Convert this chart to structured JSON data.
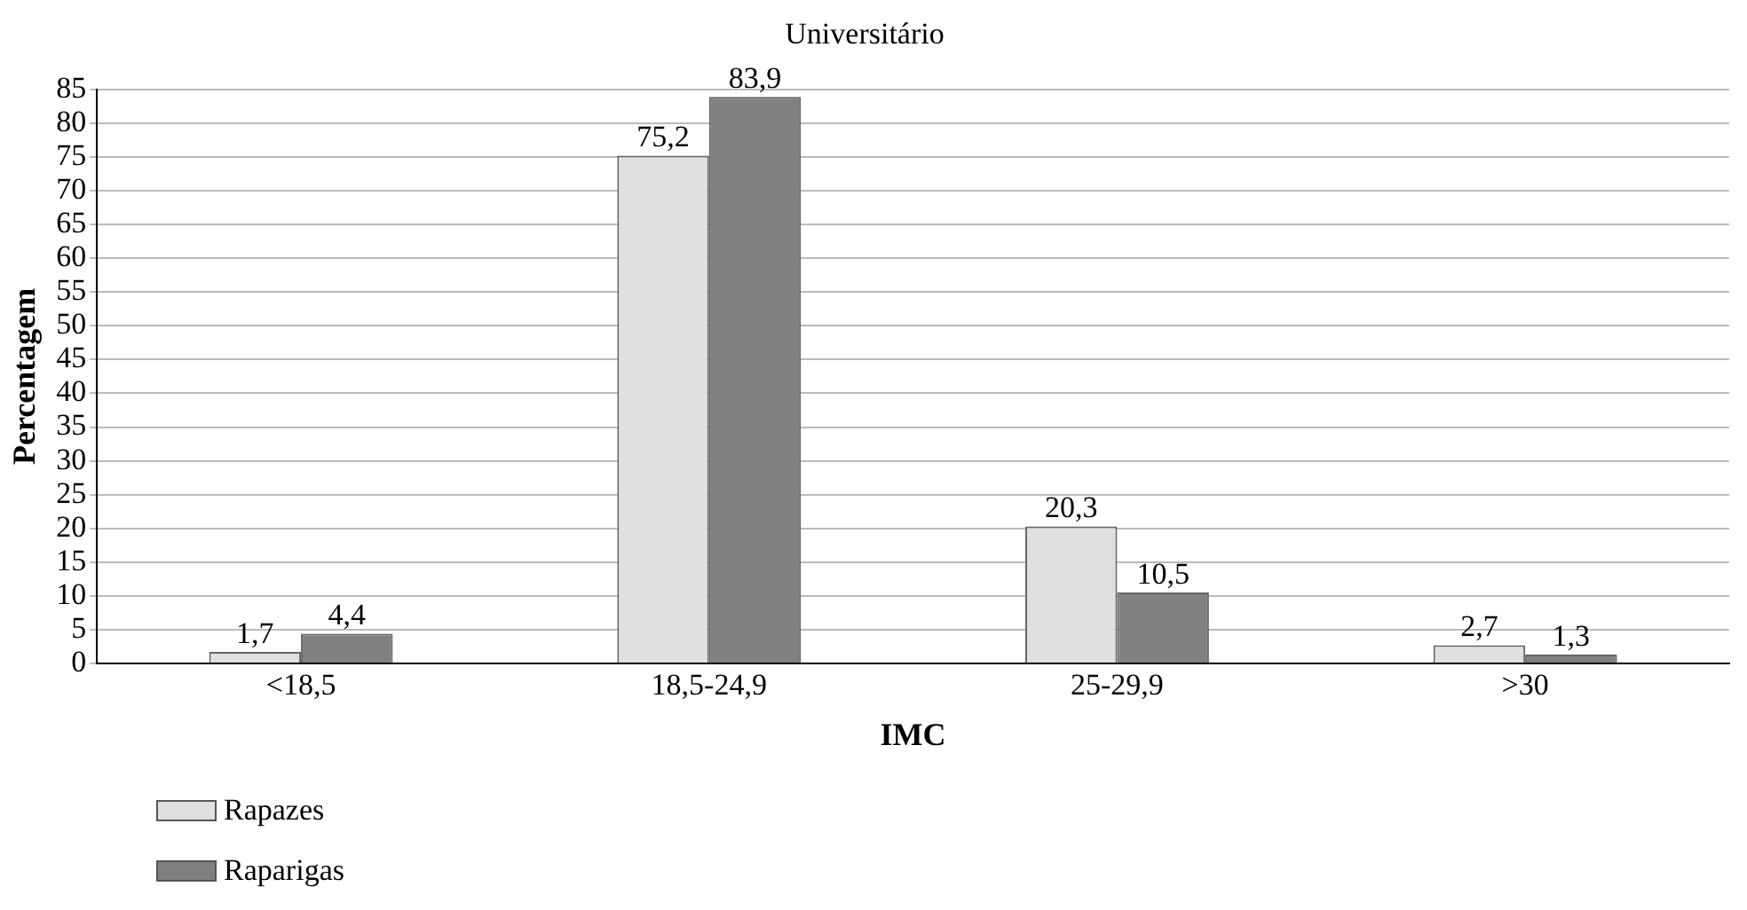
{
  "chart_data": {
    "type": "bar",
    "title": "Universitário",
    "xlabel": "IMC",
    "ylabel": "Percentagem",
    "categories": [
      "<18,5",
      "18,5-24,9",
      "25-29,9",
      ">30"
    ],
    "series": [
      {
        "name": "Rapazes",
        "color": "#e0e0e0",
        "values": [
          1.7,
          75.2,
          20.3,
          2.7
        ],
        "value_labels": [
          "1,7",
          "75,2",
          "20,3",
          "2,7"
        ]
      },
      {
        "name": "Raparigas",
        "color": "#808080",
        "values": [
          4.4,
          83.9,
          10.5,
          1.3
        ],
        "value_labels": [
          "4,4",
          "83,9",
          "10,5",
          "1,3"
        ]
      }
    ],
    "ylim": [
      0,
      85
    ],
    "yticks": [
      0,
      5,
      10,
      15,
      20,
      25,
      30,
      35,
      40,
      45,
      50,
      55,
      60,
      65,
      70,
      75,
      80,
      85
    ],
    "grid": "y",
    "legend": "bottom"
  }
}
